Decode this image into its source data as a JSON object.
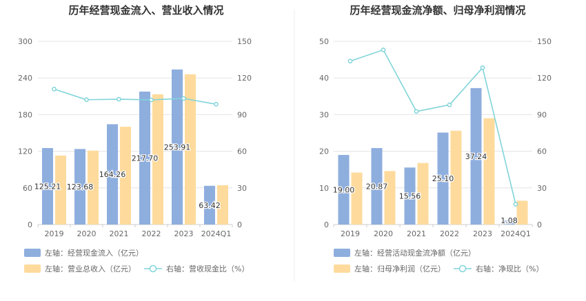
{
  "colors": {
    "bar1": "#8eaede",
    "bar2": "#fedb9d",
    "line": "#80d4da",
    "grid": "#e3e3e3",
    "axis": "#cccccc",
    "divider": "#eeeeee"
  },
  "chart_data": [
    {
      "type": "bar",
      "title": "历年经营现金流入、营业收入情况",
      "categories": [
        "2019",
        "2020",
        "2021",
        "2022",
        "2023",
        "2024Q1"
      ],
      "left_axis": {
        "min": 0,
        "max": 300,
        "ticks": [
          "0",
          "60",
          "120",
          "180",
          "240",
          "300"
        ]
      },
      "right_axis": {
        "min": 0,
        "max": 150,
        "ticks": [
          "0",
          "30",
          "60",
          "90",
          "120",
          "150"
        ]
      },
      "series": [
        {
          "name": "左轴：经营现金流入（亿元）",
          "kind": "bar",
          "axis": "left",
          "values": [
            125.21,
            123.68,
            164.26,
            217.7,
            253.91,
            63.42
          ],
          "labels": [
            "125.21",
            "123.68",
            "164.26",
            "217.70",
            "253.91",
            "63.42"
          ]
        },
        {
          "name": "左轴：营业总收入（亿元）",
          "kind": "bar",
          "axis": "left",
          "values": [
            112.9,
            121.0,
            160.2,
            213.3,
            246.0,
            64.4
          ]
        },
        {
          "name": "右轴：营收现金比（%）",
          "kind": "line",
          "axis": "right",
          "values": [
            110.9,
            102.2,
            102.6,
            102.1,
            103.2,
            98.5
          ]
        }
      ]
    },
    {
      "type": "bar",
      "title": "历年经营现金流净额、归母净利润情况",
      "categories": [
        "2019",
        "2020",
        "2021",
        "2022",
        "2023",
        "2024Q1"
      ],
      "left_axis": {
        "min": 0,
        "max": 50,
        "ticks": [
          "0",
          "10",
          "20",
          "30",
          "40",
          "50"
        ]
      },
      "right_axis": {
        "min": 0,
        "max": 150,
        "ticks": [
          "0",
          "30",
          "60",
          "90",
          "120",
          "150"
        ]
      },
      "series": [
        {
          "name": "左轴：经营活动现金流净额（亿元）",
          "kind": "bar",
          "axis": "left",
          "values": [
            19.0,
            20.87,
            15.56,
            25.1,
            37.24,
            1.08
          ],
          "labels": [
            "19.00",
            "20.87",
            "15.56",
            "25.10",
            "37.24",
            "1.08"
          ]
        },
        {
          "name": "左轴：归母净利润（亿元）",
          "kind": "bar",
          "axis": "left",
          "values": [
            14.2,
            14.6,
            16.8,
            25.6,
            29.0,
            6.5
          ]
        },
        {
          "name": "右轴：净现比（%）",
          "kind": "line",
          "axis": "right",
          "values": [
            133.8,
            143.0,
            92.6,
            98.0,
            128.4,
            16.6
          ]
        }
      ]
    }
  ]
}
